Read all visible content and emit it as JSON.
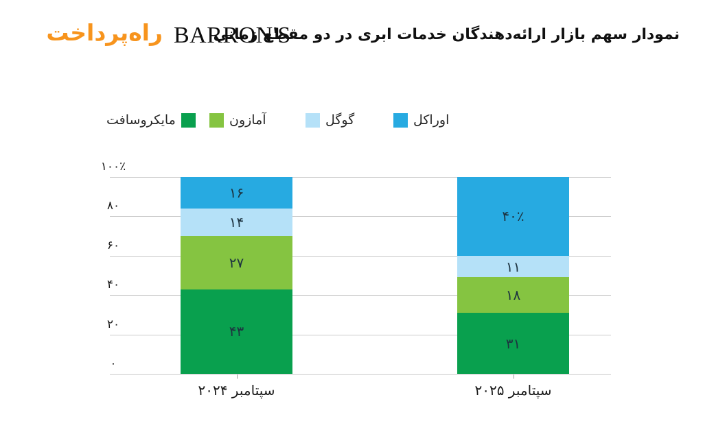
{
  "header": {
    "site_logo": "راه‌پرداخت",
    "publisher_logo": "BARRON'S",
    "title": "نمودار سهم بازار ارائه‌دهندگان خدمات ابری در دو مقطع زمانی"
  },
  "legend": {
    "items": [
      {
        "label": "مایکروسافت",
        "color": "#09a04e",
        "swatch_side": "right"
      },
      {
        "label": "آمازون",
        "color": "#85c441",
        "swatch_side": "left"
      },
      {
        "label": "گوگل",
        "color": "#b5e1f8",
        "swatch_side": "left"
      },
      {
        "label": "اوراکل",
        "color": "#27aae1",
        "swatch_side": "left"
      }
    ]
  },
  "chart_data": {
    "type": "bar",
    "subtype": "stacked-vertical",
    "title": "نمودار سهم بازار ارائه‌دهندگان خدمات ابری در دو مقطع زمانی",
    "categories": [
      "سپتامبر ۲۰۲۴",
      "سپتامبر ۲۰۲۵"
    ],
    "series": [
      {
        "name": "مایکروسافت",
        "color": "#09a04e",
        "values": [
          43,
          31
        ],
        "value_labels": [
          "۴۳",
          "۳۱"
        ]
      },
      {
        "name": "آمازون",
        "color": "#85c441",
        "values": [
          27,
          18
        ],
        "value_labels": [
          "۲۷",
          "۱۸"
        ]
      },
      {
        "name": "گوگل",
        "color": "#b5e1f8",
        "values": [
          14,
          11
        ],
        "value_labels": [
          "۱۴",
          "۱۱"
        ]
      },
      {
        "name": "اوراکل",
        "color": "#27aae1",
        "values": [
          16,
          40
        ],
        "value_labels": [
          "۱۶",
          "۴۰٪"
        ]
      }
    ],
    "y_axis": {
      "min": 0,
      "max": 100,
      "ticks": [
        0,
        20,
        40,
        60,
        80,
        100
      ],
      "tick_labels": [
        "۰",
        "۲۰",
        "۴۰",
        "۶۰",
        "۸۰",
        "۱۰۰٪"
      ]
    },
    "grid": true,
    "legend_position": "top",
    "stack_order": "first-series-at-bottom"
  }
}
